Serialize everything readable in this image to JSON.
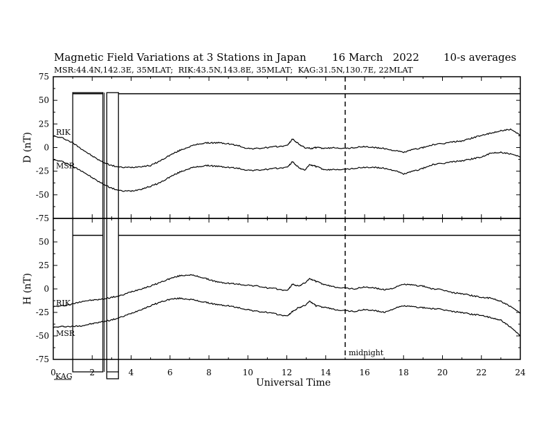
{
  "chart_data": {
    "type": "line",
    "title": "Magnetic Field Variations at 3 Stations in Japan",
    "date": "16 March   2022",
    "averaging": "10-s averages",
    "subtitle": "MSR:44.4N,142.3E, 35MLAT;  RIK:43.5N,143.8E, 35MLAT;  KAG:31.5N,130.7E, 22MLAT",
    "xlabel": "Universal Time",
    "xlim": [
      0,
      24
    ],
    "xticks": [
      "0",
      "2",
      "4",
      "6",
      "8",
      "10",
      "12",
      "14",
      "16",
      "18",
      "20",
      "22",
      "24"
    ],
    "midnight_label": "midnight",
    "midnight_ut": 15,
    "kag_label": "KAG",
    "panels": [
      {
        "ylabel": "D (nT)",
        "ylim": [
          -75,
          75
        ],
        "yticks": [
          "75",
          "50",
          "25",
          "0",
          "-25",
          "-50",
          "-75"
        ],
        "series": [
          {
            "name": "RIK",
            "x": [
              0,
              0.5,
              1,
              1.5,
              2,
              2.5,
              3,
              3.5,
              4,
              4.5,
              5,
              5.5,
              6,
              6.5,
              7,
              7.5,
              8,
              8.5,
              9,
              9.5,
              10,
              10.5,
              11,
              11.5,
              12,
              12.3,
              12.6,
              12.9,
              13.2,
              13.5,
              14,
              14.5,
              15,
              15.5,
              16,
              16.5,
              17,
              17.5,
              18,
              18.5,
              19,
              19.5,
              20,
              20.5,
              21,
              21.5,
              22,
              22.5,
              23,
              23.5,
              24
            ],
            "y": [
              12,
              10,
              5,
              -2,
              -9,
              -15,
              -19,
              -21,
              -21,
              -20,
              -19,
              -14,
              -8,
              -3,
              1,
              4,
              5,
              5,
              4,
              2,
              -1,
              -1,
              0,
              1,
              2,
              9,
              4,
              0,
              -1,
              0,
              -1,
              0,
              -1,
              0,
              1,
              0,
              -1,
              -3,
              -5,
              -2,
              0,
              3,
              4,
              6,
              7,
              10,
              13,
              15,
              18,
              19,
              13
            ]
          },
          {
            "name": "MSR",
            "x": [
              0,
              0.5,
              1,
              1.5,
              2,
              2.5,
              3,
              3.5,
              4,
              4.5,
              5,
              5.5,
              6,
              6.5,
              7,
              7.5,
              8,
              8.5,
              9,
              9.5,
              10,
              10.5,
              11,
              11.5,
              12,
              12.3,
              12.6,
              12.9,
              13.2,
              13.5,
              14,
              14.5,
              15,
              15.5,
              16,
              16.5,
              17,
              17.5,
              18,
              18.5,
              19,
              19.5,
              20,
              20.5,
              21,
              21.5,
              22,
              22.5,
              23,
              23.5,
              24
            ],
            "y": [
              -13,
              -15,
              -20,
              -25,
              -32,
              -38,
              -43,
              -46,
              -46,
              -44,
              -41,
              -37,
              -31,
              -26,
              -22,
              -20,
              -19,
              -20,
              -21,
              -22,
              -24,
              -24,
              -23,
              -22,
              -21,
              -15,
              -21,
              -24,
              -18,
              -20,
              -24,
              -23,
              -23,
              -22,
              -21,
              -21,
              -22,
              -24,
              -28,
              -25,
              -22,
              -18,
              -17,
              -15,
              -14,
              -12,
              -10,
              -6,
              -5,
              -7,
              -10
            ]
          }
        ],
        "kag_bar_y": 57
      },
      {
        "ylabel": "H (nT)",
        "ylim": [
          -75,
          75
        ],
        "yticks": [
          "",
          "50",
          "25",
          "0",
          "-25",
          "-50",
          "-75"
        ],
        "series": [
          {
            "name": "RIK",
            "x": [
              0,
              0.5,
              1,
              1.5,
              2,
              2.5,
              3,
              3.5,
              4,
              4.5,
              5,
              5.5,
              6,
              6.5,
              7,
              7.5,
              8,
              8.5,
              9,
              9.5,
              10,
              10.5,
              11,
              11.5,
              12,
              12.3,
              12.6,
              12.9,
              13.2,
              13.5,
              14,
              14.5,
              15,
              15.5,
              16,
              16.5,
              17,
              17.5,
              18,
              18.5,
              19,
              19.5,
              20,
              20.5,
              21,
              21.5,
              22,
              22.5,
              23,
              23.5,
              24
            ],
            "y": [
              -19,
              -18,
              -16,
              -13,
              -12,
              -11,
              -9,
              -7,
              -3,
              0,
              3,
              7,
              11,
              14,
              15,
              13,
              10,
              7,
              6,
              5,
              4,
              3,
              1,
              0,
              -2,
              5,
              3,
              6,
              11,
              8,
              4,
              2,
              1,
              0,
              2,
              1,
              -1,
              1,
              5,
              4,
              3,
              0,
              -1,
              -4,
              -5,
              -7,
              -9,
              -10,
              -13,
              -19,
              -26
            ]
          },
          {
            "name": "MSR",
            "x": [
              0,
              0.5,
              1,
              1.5,
              2,
              2.5,
              3,
              3.5,
              4,
              4.5,
              5,
              5.5,
              6,
              6.5,
              7,
              7.5,
              8,
              8.5,
              9,
              9.5,
              10,
              10.5,
              11,
              11.5,
              12,
              12.3,
              12.6,
              12.9,
              13.2,
              13.5,
              14,
              14.5,
              15,
              15.5,
              16,
              16.5,
              17,
              17.5,
              18,
              18.5,
              19,
              19.5,
              20,
              20.5,
              21,
              21.5,
              22,
              22.5,
              23,
              23.5,
              24
            ],
            "y": [
              -41,
              -40,
              -40,
              -39,
              -37,
              -35,
              -33,
              -30,
              -26,
              -22,
              -18,
              -14,
              -11,
              -10,
              -11,
              -13,
              -15,
              -17,
              -18,
              -20,
              -22,
              -24,
              -25,
              -27,
              -29,
              -24,
              -20,
              -18,
              -13,
              -18,
              -20,
              -22,
              -23,
              -24,
              -22,
              -23,
              -25,
              -21,
              -18,
              -19,
              -20,
              -21,
              -22,
              -24,
              -25,
              -27,
              -28,
              -31,
              -33,
              -41,
              -50
            ]
          }
        ],
        "kag_bar_y": 57
      }
    ],
    "kag_gaps": [
      [
        1.0,
        2.55
      ],
      [
        2.75,
        3.35
      ]
    ]
  }
}
